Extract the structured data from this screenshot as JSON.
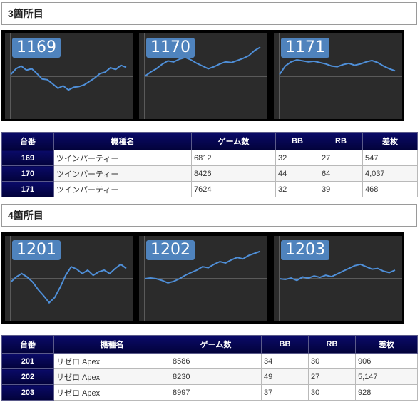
{
  "colors": {
    "badge": "#4f83bd",
    "line": "#4f8fd8",
    "panel": "#2b2b2b",
    "header": "#0a0a68"
  },
  "sections": [
    {
      "title": "3箇所目",
      "graphs": [
        {
          "id": "1169",
          "series": [
            0.05,
            0.22,
            0.3,
            0.18,
            0.22,
            0.08,
            -0.08,
            -0.1,
            -0.22,
            -0.35,
            -0.28,
            -0.4,
            -0.32,
            -0.3,
            -0.25,
            -0.15,
            -0.05,
            0.08,
            0.12,
            0.25,
            0.2,
            0.32,
            0.26
          ]
        },
        {
          "id": "1170",
          "series": [
            0,
            0.12,
            0.22,
            0.35,
            0.45,
            0.42,
            0.5,
            0.55,
            0.48,
            0.38,
            0.3,
            0.22,
            0.28,
            0.36,
            0.42,
            0.4,
            0.46,
            0.52,
            0.6,
            0.75,
            0.85
          ]
        },
        {
          "id": "1171",
          "series": [
            0.05,
            0.3,
            0.42,
            0.48,
            0.45,
            0.42,
            0.44,
            0.4,
            0.36,
            0.3,
            0.28,
            0.34,
            0.38,
            0.32,
            0.36,
            0.42,
            0.46,
            0.4,
            0.3,
            0.22,
            0.16
          ]
        }
      ],
      "table": {
        "headers": [
          "台番",
          "機種名",
          "ゲーム数",
          "BB",
          "RB",
          "差枚"
        ],
        "rows": [
          [
            "169",
            "ツインパーティー",
            "6812",
            "32",
            "27",
            "547"
          ],
          [
            "170",
            "ツインパーティー",
            "8426",
            "44",
            "64",
            "4,037"
          ],
          [
            "171",
            "ツインパーティー",
            "7624",
            "32",
            "39",
            "468"
          ]
        ]
      }
    },
    {
      "title": "4箇所目",
      "graphs": [
        {
          "id": "1201",
          "series": [
            -0.1,
            0.05,
            0.15,
            0.05,
            -0.1,
            -0.32,
            -0.5,
            -0.7,
            -0.55,
            -0.25,
            0.1,
            0.35,
            0.28,
            0.15,
            0.25,
            0.1,
            0.2,
            0.25,
            0.15,
            0.3,
            0.42,
            0.3
          ]
        },
        {
          "id": "1202",
          "series": [
            0,
            0.02,
            0,
            -0.05,
            -0.12,
            -0.08,
            0,
            0.1,
            0.18,
            0.25,
            0.35,
            0.32,
            0.42,
            0.5,
            0.46,
            0.55,
            0.62,
            0.58,
            0.68,
            0.74,
            0.8
          ]
        },
        {
          "id": "1203",
          "series": [
            0,
            -0.02,
            0.02,
            -0.05,
            0.05,
            0.02,
            0.08,
            0.04,
            0.1,
            0.06,
            0.14,
            0.22,
            0.3,
            0.38,
            0.42,
            0.35,
            0.28,
            0.3,
            0.22,
            0.18,
            0.25
          ]
        }
      ],
      "table": {
        "headers": [
          "台番",
          "機種名",
          "ゲーム数",
          "BB",
          "RB",
          "差枚"
        ],
        "rows": [
          [
            "201",
            "リゼロ Apex",
            "8586",
            "34",
            "30",
            "906"
          ],
          [
            "202",
            "リゼロ Apex",
            "8230",
            "49",
            "27",
            "5,147"
          ],
          [
            "203",
            "リゼロ Apex",
            "8997",
            "37",
            "30",
            "928"
          ]
        ]
      }
    }
  ]
}
